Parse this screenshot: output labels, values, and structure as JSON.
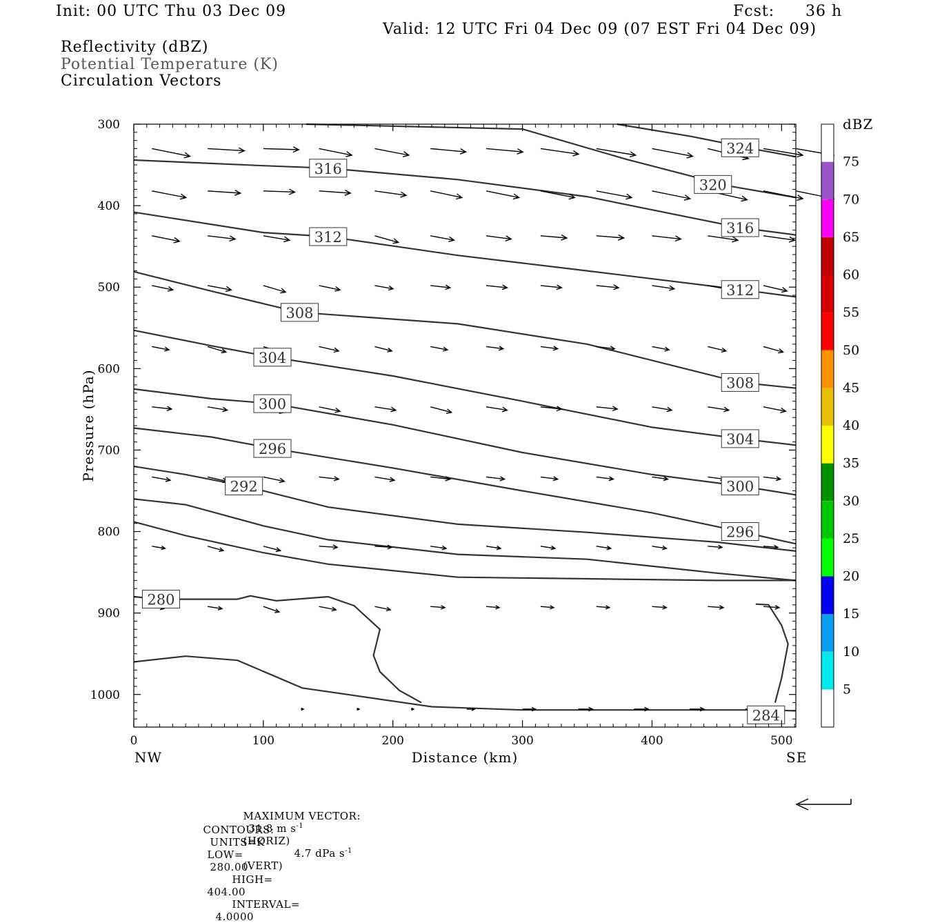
{
  "header": {
    "init": "Init: 00 UTC Thu 03 Dec 09",
    "fcst_label": "Fcst:",
    "fcst_value": "36 h",
    "valid": "Valid: 12 UTC Fri 04 Dec 09 (07 EST Fri 04 Dec 09)"
  },
  "legend": {
    "line1": "Reflectivity (dBZ)",
    "line2": "Potential Temperature (K)",
    "line3": "Circulation Vectors"
  },
  "footer": {
    "maxvec_label": "MAXIMUM VECTOR:",
    "maxvec_horiz": "31.8 m s",
    "horiz_tag": "(HORIZ)",
    "maxvec_vert": "4.7 dPa s",
    "vert_tag": "(VERT)",
    "exp": "-1",
    "contours_label": "CONTOURS:",
    "units": "UNITS=K",
    "low_label": "LOW=",
    "low": "280.00",
    "high_label": "HIGH=",
    "high": "404.00",
    "interval_label": "INTERVAL=",
    "interval": "4.0000"
  },
  "chart_data": {
    "type": "line",
    "xlabel": "Distance (km)",
    "ylabel": "Pressure (hPa)",
    "xlim": [
      0,
      511
    ],
    "ylim": [
      1040,
      300
    ],
    "x_ticks": [
      0,
      100,
      200,
      300,
      400,
      500
    ],
    "y_ticks": [
      300,
      400,
      500,
      600,
      700,
      800,
      900,
      1000
    ],
    "x_end_labels": {
      "left": "NW",
      "right": "SE"
    },
    "colorbar": {
      "label": "dBZ",
      "ticks": [
        5,
        10,
        15,
        20,
        25,
        30,
        35,
        40,
        45,
        50,
        55,
        60,
        65,
        70,
        75
      ],
      "colors": [
        "#ffffff",
        "#00e8e8",
        "#0aa0f5",
        "#0000f5",
        "#00ff00",
        "#00c800",
        "#009000",
        "#ffff00",
        "#e7c000",
        "#ff9000",
        "#ff0000",
        "#d60000",
        "#c00000",
        "#ff00ff",
        "#9955c9",
        "#ffffff"
      ]
    },
    "contours": [
      {
        "value": 324,
        "label": "324",
        "label_at": [
          468,
          329
        ],
        "points": [
          [
            373,
            300
          ],
          [
            430,
            315
          ],
          [
            480,
            331
          ],
          [
            511,
            340
          ]
        ]
      },
      {
        "value": 320,
        "label": "320",
        "label_at": [
          447,
          374
        ],
        "points": [
          [
            133,
            300
          ],
          [
            300,
            306
          ],
          [
            380,
            343
          ],
          [
            460,
            376
          ],
          [
            511,
            390
          ]
        ]
      },
      {
        "value": 316,
        "label": "316",
        "label_at": [
          150,
          354
        ],
        "points": [
          [
            0,
            344
          ],
          [
            100,
            351
          ],
          [
            150,
            354
          ],
          [
            250,
            368
          ],
          [
            350,
            389
          ],
          [
            468,
            427
          ],
          [
            511,
            436
          ]
        ]
      },
      {
        "value": 316,
        "label": "316",
        "label_at": [
          468,
          427
        ],
        "points": []
      },
      {
        "value": 312,
        "label": "312",
        "label_at": [
          150,
          438
        ],
        "points": [
          [
            0,
            408
          ],
          [
            100,
            433
          ],
          [
            150,
            438
          ],
          [
            250,
            461
          ],
          [
            350,
            480
          ],
          [
            468,
            503
          ],
          [
            511,
            512
          ]
        ]
      },
      {
        "value": 312,
        "label": "312",
        "label_at": [
          468,
          503
        ],
        "points": []
      },
      {
        "value": 308,
        "label": "308",
        "label_at": [
          128,
          531
        ],
        "points": [
          [
            0,
            481
          ],
          [
            60,
            505
          ],
          [
            128,
            531
          ],
          [
            250,
            545
          ],
          [
            350,
            570
          ],
          [
            468,
            617
          ],
          [
            511,
            624
          ]
        ]
      },
      {
        "value": 308,
        "label": "308",
        "label_at": [
          468,
          617
        ],
        "points": []
      },
      {
        "value": 304,
        "label": "304",
        "label_at": [
          107,
          586
        ],
        "points": [
          [
            0,
            553
          ],
          [
            60,
            572
          ],
          [
            107,
            586
          ],
          [
            200,
            609
          ],
          [
            300,
            640
          ],
          [
            400,
            672
          ],
          [
            468,
            686
          ],
          [
            511,
            694
          ]
        ]
      },
      {
        "value": 304,
        "label": "304",
        "label_at": [
          468,
          686
        ],
        "points": []
      },
      {
        "value": 300,
        "label": "300",
        "label_at": [
          107,
          643
        ],
        "points": [
          [
            0,
            625
          ],
          [
            60,
            637
          ],
          [
            107,
            643
          ],
          [
            200,
            669
          ],
          [
            300,
            703
          ],
          [
            400,
            730
          ],
          [
            468,
            744
          ],
          [
            511,
            755
          ]
        ]
      },
      {
        "value": 300,
        "label": "300",
        "label_at": [
          468,
          744
        ],
        "points": []
      },
      {
        "value": 296,
        "label": "296",
        "label_at": [
          107,
          698
        ],
        "points": [
          [
            0,
            673
          ],
          [
            60,
            684
          ],
          [
            107,
            698
          ],
          [
            200,
            722
          ],
          [
            300,
            750
          ],
          [
            400,
            777
          ],
          [
            468,
            800
          ],
          [
            511,
            815
          ]
        ]
      },
      {
        "value": 296,
        "label": "296",
        "label_at": [
          468,
          800
        ],
        "points": []
      },
      {
        "value": 292,
        "label": "292",
        "label_at": [
          85,
          744
        ],
        "points": [
          [
            0,
            720
          ],
          [
            40,
            730
          ],
          [
            85,
            744
          ],
          [
            150,
            770
          ],
          [
            250,
            791
          ],
          [
            350,
            801
          ],
          [
            450,
            813
          ],
          [
            511,
            824
          ]
        ]
      },
      {
        "value": 288,
        "label": "",
        "label_at": null,
        "points": [
          [
            0,
            760
          ],
          [
            40,
            767
          ],
          [
            100,
            793
          ],
          [
            150,
            810
          ],
          [
            250,
            828
          ],
          [
            350,
            834
          ],
          [
            450,
            851
          ],
          [
            511,
            860
          ]
        ]
      },
      {
        "value": 284,
        "label": "",
        "label_at": null,
        "points": [
          [
            0,
            788
          ],
          [
            40,
            805
          ],
          [
            100,
            826
          ],
          [
            150,
            840
          ],
          [
            250,
            856
          ],
          [
            350,
            858
          ],
          [
            450,
            860
          ],
          [
            511,
            860
          ]
        ]
      },
      {
        "value": 280,
        "label": "280",
        "label_at": [
          21,
          883
        ],
        "points": [
          [
            0,
            880
          ],
          [
            21,
            883
          ],
          [
            50,
            883
          ],
          [
            80,
            883
          ],
          [
            90,
            879
          ],
          [
            110,
            885
          ],
          [
            150,
            880
          ],
          [
            170,
            891
          ],
          [
            190,
            920
          ],
          [
            185,
            952
          ],
          [
            190,
            972
          ],
          [
            205,
            995
          ],
          [
            222,
            1010
          ]
        ]
      },
      {
        "value": 284,
        "label": "284",
        "label_at": [
          488,
          1025
        ],
        "points": [
          [
            0,
            960
          ],
          [
            40,
            953
          ],
          [
            80,
            958
          ],
          [
            130,
            992
          ],
          [
            230,
            1015
          ],
          [
            300,
            1019
          ],
          [
            400,
            1019
          ],
          [
            488,
            1019
          ],
          [
            511,
            1020
          ]
        ]
      },
      {
        "value": 284,
        "label": "",
        "label_at": null,
        "points": [
          [
            480,
            889
          ],
          [
            490,
            890
          ],
          [
            500,
            915
          ],
          [
            505,
            938
          ],
          [
            500,
            980
          ],
          [
            495,
            1010
          ]
        ]
      }
    ],
    "vectors": {
      "rows": [
        {
          "p": 330,
          "x": [
            14,
            57,
            100,
            143,
            186,
            229,
            272,
            314,
            357,
            400,
            443,
            486,
            511
          ],
          "u": [
            29,
            28,
            27,
            25,
            26,
            27,
            28,
            29,
            30,
            31,
            31,
            30,
            29
          ],
          "dp": [
            7,
            2,
            1,
            6,
            6,
            3,
            3,
            5,
            6,
            7,
            9,
            6,
            6
          ]
        },
        {
          "p": 382,
          "x": [
            14,
            57,
            100,
            143,
            186,
            229,
            272,
            314,
            357,
            400,
            443,
            486,
            511
          ],
          "u": [
            26,
            25,
            24,
            24,
            24,
            24,
            25,
            26,
            27,
            29,
            30,
            30,
            29
          ],
          "dp": [
            6,
            2,
            1,
            2,
            4,
            6,
            6,
            6,
            6,
            7,
            8,
            7,
            7
          ]
        },
        {
          "p": 437,
          "x": [
            14,
            57,
            100,
            143,
            186,
            229,
            272,
            314,
            357,
            400,
            443,
            486
          ],
          "u": [
            21,
            21,
            20,
            19,
            18,
            18,
            19,
            20,
            21,
            22,
            23,
            24
          ],
          "dp": [
            5,
            3,
            4,
            6,
            6,
            4,
            3,
            2,
            2,
            3,
            4,
            4
          ]
        },
        {
          "p": 498,
          "x": [
            14,
            57,
            100,
            143,
            186,
            229,
            272,
            314,
            357,
            400,
            443,
            486
          ],
          "u": [
            16,
            18,
            17,
            16,
            14,
            15,
            16,
            16,
            17,
            17,
            18,
            18
          ],
          "dp": [
            4,
            4,
            6,
            4,
            3,
            2,
            2,
            2,
            2,
            3,
            4,
            5
          ]
        },
        {
          "p": 573,
          "x": [
            14,
            57,
            100,
            143,
            186,
            229,
            272,
            314,
            357,
            400,
            443,
            486
          ],
          "u": [
            13,
            14,
            15,
            15,
            13,
            13,
            13,
            13,
            14,
            13,
            14,
            15
          ],
          "dp": [
            3,
            5,
            6,
            4,
            4,
            3,
            2,
            2,
            2,
            3,
            4,
            5
          ]
        },
        {
          "p": 647,
          "x": [
            14,
            57,
            100,
            143,
            186,
            229,
            272,
            314,
            357,
            400,
            443,
            486
          ],
          "u": [
            15,
            15,
            16,
            16,
            16,
            16,
            16,
            16,
            16,
            15,
            16,
            17
          ],
          "dp": [
            2,
            3,
            5,
            4,
            3,
            5,
            3,
            2,
            2,
            3,
            3,
            4
          ]
        },
        {
          "p": 733,
          "x": [
            14,
            57,
            100,
            143,
            186,
            229,
            272,
            314,
            357,
            400,
            443,
            486
          ],
          "u": [
            14,
            15,
            16,
            15,
            15,
            15,
            14,
            13,
            13,
            12,
            13,
            13
          ],
          "dp": [
            3,
            4,
            4,
            2,
            3,
            2,
            2,
            2,
            2,
            2,
            2,
            2
          ]
        },
        {
          "p": 818,
          "x": [
            14,
            57,
            100,
            143,
            186,
            229,
            272,
            314,
            357,
            400,
            443,
            486
          ],
          "u": [
            10,
            12,
            13,
            14,
            13,
            12,
            11,
            11,
            11,
            11,
            11,
            11
          ],
          "dp": [
            2,
            4,
            4,
            1,
            1,
            2,
            2,
            2,
            2,
            2,
            1,
            1
          ]
        },
        {
          "p": 892,
          "x": [
            14,
            57,
            100,
            143,
            186,
            229,
            272,
            314,
            357,
            400,
            443,
            486
          ],
          "u": [
            9,
            11,
            12,
            13,
            12,
            11,
            10,
            10,
            10,
            11,
            12,
            12
          ],
          "dp": [
            2,
            2,
            5,
            3,
            3,
            1,
            1,
            1,
            1,
            1,
            1,
            1
          ]
        },
        {
          "p": 1018,
          "x": [
            129,
            172,
            214,
            257,
            300,
            343,
            386,
            429,
            472
          ],
          "u": [
            2,
            2,
            2,
            6,
            10,
            11,
            11,
            11,
            11
          ],
          "dp": [
            0,
            0,
            0,
            0,
            0,
            0,
            0,
            0,
            0
          ]
        }
      ]
    }
  }
}
